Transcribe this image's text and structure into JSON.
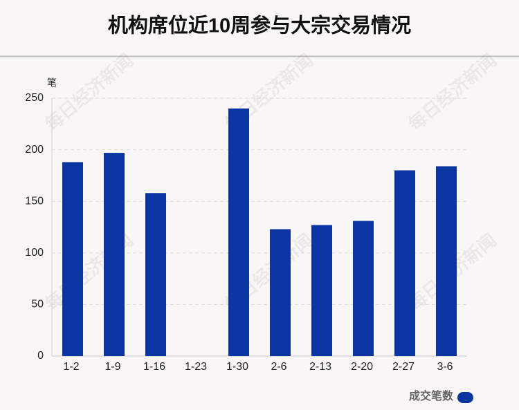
{
  "chart_data": {
    "type": "bar",
    "title": "机构席位近10周参与大宗交易情况",
    "y_unit": "笔",
    "watermark": "每日经济新闻",
    "categories": [
      "1-2",
      "1-9",
      "1-16",
      "1-23",
      "1-30",
      "2-6",
      "2-13",
      "2-20",
      "2-27",
      "3-6"
    ],
    "series": [
      {
        "name": "成交笔数",
        "color": "#0b36a1",
        "values": [
          188,
          197,
          158,
          0,
          240,
          123,
          127,
          131,
          180,
          184
        ]
      }
    ],
    "ylim": [
      0,
      250
    ],
    "yticks": [
      0,
      50,
      100,
      150,
      200,
      250
    ],
    "grid": true,
    "legend": "bottom-right"
  }
}
